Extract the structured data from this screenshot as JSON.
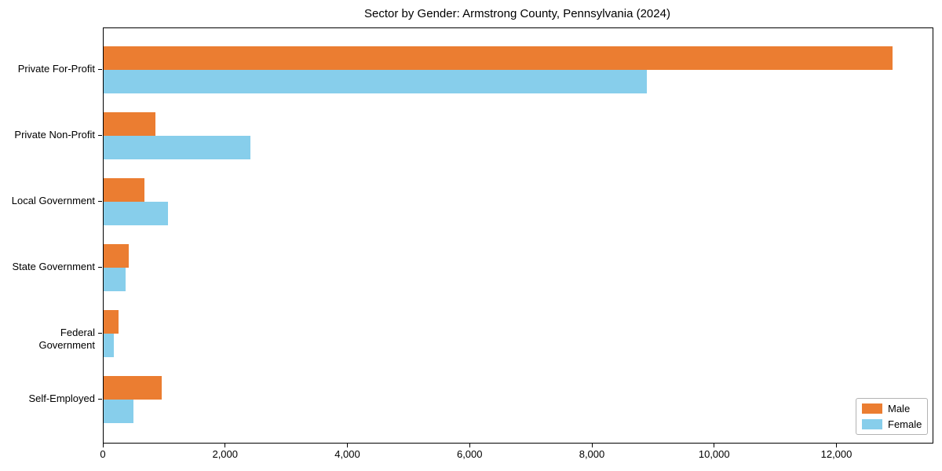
{
  "title": "Sector by Gender: Armstrong County, Pennsylvania (2024)",
  "chart_data": {
    "type": "bar",
    "orientation": "horizontal",
    "title": "Sector by Gender: Armstrong County, Pennsylvania (2024)",
    "categories": [
      "Private For-Profit",
      "Private Non-Profit",
      "Local Government",
      "State Government",
      "Federal Government",
      "Self-Employed"
    ],
    "series": [
      {
        "name": "Male",
        "color": "#EB7D31",
        "values": [
          12910,
          850,
          665,
          415,
          245,
          955
        ]
      },
      {
        "name": "Female",
        "color": "#87CEEB",
        "values": [
          8880,
          2395,
          1050,
          365,
          160,
          485
        ]
      }
    ],
    "xlabel": "",
    "ylabel": "",
    "xlim": [
      0,
      13560
    ],
    "xticks": {
      "values": [
        0,
        2000,
        4000,
        6000,
        8000,
        10000,
        12000
      ],
      "labels": [
        "0",
        "2,000",
        "4,000",
        "6,000",
        "8,000",
        "10,000",
        "12,000"
      ]
    },
    "grid": false,
    "legend_position": "lower right",
    "background_color": "#ffffff",
    "spine_color": "#000000"
  }
}
